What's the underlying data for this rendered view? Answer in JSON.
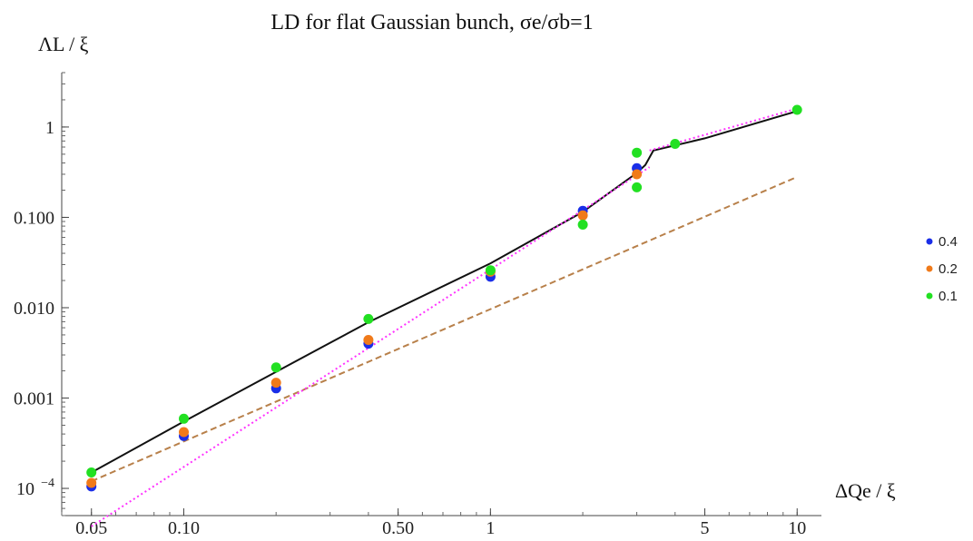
{
  "chart_data": {
    "type": "scatter",
    "title": "LD for flat Gaussian bunch, σe/σb=1",
    "xlabel": "ΔQe / ξ",
    "ylabel": "ΛL / ξ",
    "xscale": "log",
    "yscale": "log",
    "xlim": [
      0.04,
      12
    ],
    "ylim": [
      5e-05,
      4
    ],
    "x_ticks": [
      {
        "value": 0.05,
        "label": "0.05"
      },
      {
        "value": 0.1,
        "label": "0.10"
      },
      {
        "value": 0.5,
        "label": "0.50"
      },
      {
        "value": 1,
        "label": "1"
      },
      {
        "value": 5,
        "label": "5"
      },
      {
        "value": 10,
        "label": "10"
      }
    ],
    "y_ticks": [
      {
        "value": 0.0001,
        "label": "10",
        "sup": "−4"
      },
      {
        "value": 0.001,
        "label": "0.001"
      },
      {
        "value": 0.01,
        "label": "0.010"
      },
      {
        "value": 0.1,
        "label": "0.100"
      },
      {
        "value": 1,
        "label": "1"
      }
    ],
    "legend_position": "right",
    "series": [
      {
        "name": "0.4",
        "color": "#1a2ee8",
        "points": [
          [
            0.05,
            0.000105
          ],
          [
            0.1,
            0.00038
          ],
          [
            0.2,
            0.00128
          ],
          [
            0.4,
            0.004
          ],
          [
            1,
            0.022
          ],
          [
            2,
            0.118
          ],
          [
            3,
            0.35
          ]
        ]
      },
      {
        "name": "0.2",
        "color": "#f07a1a",
        "points": [
          [
            0.05,
            0.000115
          ],
          [
            0.1,
            0.00042
          ],
          [
            0.2,
            0.00148
          ],
          [
            0.4,
            0.0044
          ],
          [
            1,
            0.025
          ],
          [
            2,
            0.105
          ],
          [
            3,
            0.3
          ]
        ]
      },
      {
        "name": "0.1",
        "color": "#22e022",
        "points": [
          [
            0.05,
            0.00015
          ],
          [
            0.1,
            0.00059
          ],
          [
            0.2,
            0.00218
          ],
          [
            0.4,
            0.0075
          ],
          [
            1,
            0.026
          ],
          [
            2,
            0.083
          ],
          [
            3,
            0.52
          ],
          [
            3,
            0.215
          ],
          [
            4,
            0.65
          ],
          [
            10,
            1.55
          ]
        ]
      }
    ],
    "lines": [
      {
        "style": "solid",
        "color": "#111111",
        "points": [
          [
            0.05,
            0.00015
          ],
          [
            0.1,
            0.00055
          ],
          [
            0.2,
            0.00195
          ],
          [
            0.4,
            0.0069
          ],
          [
            1,
            0.031
          ],
          [
            2,
            0.115
          ],
          [
            3,
            0.31
          ],
          [
            3.2,
            0.38
          ],
          [
            3.4,
            0.55
          ],
          [
            5,
            0.75
          ],
          [
            10,
            1.5
          ]
        ]
      },
      {
        "style": "dashed",
        "color": "#b8804a",
        "points": [
          [
            0.05,
            0.00012
          ],
          [
            10,
            0.28
          ]
        ]
      },
      {
        "style": "dotted",
        "color": "#ff33ff",
        "points": [
          [
            0.05,
            3.8e-05
          ],
          [
            3.3,
            0.36
          ]
        ]
      },
      {
        "style": "dotted",
        "color": "#ff33ff",
        "points": [
          [
            3.3,
            0.55
          ],
          [
            10,
            1.6
          ]
        ]
      }
    ]
  }
}
